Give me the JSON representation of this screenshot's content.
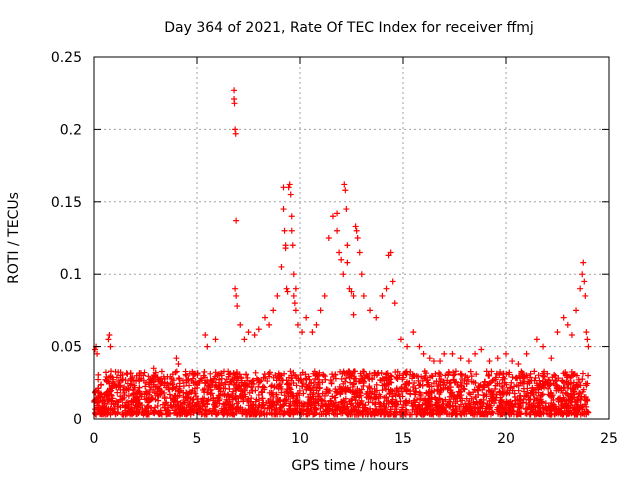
{
  "chart_data": {
    "type": "scatter",
    "title": "Day 364 of 2021, Rate Of TEC Index for receiver ffmj",
    "xlabel": "GPS time / hours",
    "ylabel": "ROTI / TECUs",
    "xlim": [
      0,
      25
    ],
    "ylim": [
      0,
      0.25
    ],
    "xticks": [
      0,
      5,
      10,
      15,
      20,
      25
    ],
    "xtick_labels": [
      "0",
      "5",
      "10",
      "15",
      "20",
      "25"
    ],
    "yticks": [
      0,
      0.05,
      0.1,
      0.15,
      0.2,
      0.25
    ],
    "ytick_labels": [
      "0",
      "0.05",
      "0.1",
      "0.15",
      "0.2",
      "0.25"
    ],
    "grid": true,
    "marker": "+",
    "color": "#ff0000",
    "series": [
      {
        "name": "ROTI",
        "baseline": {
          "x_range": [
            0,
            24
          ],
          "typical_max": 0.03,
          "count": 2600
        },
        "x": [
          0.05,
          0.1,
          0.15,
          0.7,
          0.75,
          0.8,
          2.9,
          3.0,
          4.0,
          4.1,
          5.4,
          5.5,
          5.9,
          6.8,
          6.8,
          6.82,
          6.85,
          6.88,
          6.9,
          6.85,
          6.9,
          6.95,
          7.1,
          7.3,
          7.5,
          7.8,
          8.0,
          8.3,
          8.5,
          8.7,
          8.9,
          9.1,
          9.2,
          9.2,
          9.25,
          9.3,
          9.3,
          9.35,
          9.4,
          9.45,
          9.5,
          9.55,
          9.6,
          9.6,
          9.65,
          9.7,
          9.7,
          9.75,
          9.8,
          9.8,
          9.9,
          10.1,
          10.3,
          10.6,
          10.8,
          11.0,
          11.2,
          11.4,
          11.6,
          11.8,
          11.8,
          11.9,
          12.0,
          12.1,
          12.15,
          12.2,
          12.25,
          12.3,
          12.3,
          12.4,
          12.5,
          12.6,
          12.6,
          12.7,
          12.75,
          12.8,
          12.9,
          13.0,
          13.1,
          13.4,
          13.7,
          14.0,
          14.2,
          14.3,
          14.4,
          14.5,
          14.6,
          14.9,
          15.2,
          15.5,
          15.8,
          16.0,
          16.3,
          16.5,
          16.8,
          17.0,
          17.4,
          17.8,
          18.2,
          18.5,
          18.8,
          19.2,
          19.6,
          20.0,
          20.3,
          20.6,
          21.0,
          21.5,
          21.8,
          22.2,
          22.5,
          22.8,
          23.0,
          23.2,
          23.4,
          23.6,
          23.7,
          23.75,
          23.8,
          23.85,
          23.9,
          23.95,
          24.0
        ],
        "y": [
          0.048,
          0.05,
          0.045,
          0.055,
          0.058,
          0.05,
          0.035,
          0.032,
          0.042,
          0.038,
          0.058,
          0.05,
          0.055,
          0.227,
          0.221,
          0.218,
          0.2,
          0.197,
          0.137,
          0.09,
          0.085,
          0.078,
          0.065,
          0.055,
          0.06,
          0.058,
          0.062,
          0.07,
          0.065,
          0.075,
          0.085,
          0.105,
          0.16,
          0.145,
          0.13,
          0.12,
          0.118,
          0.09,
          0.088,
          0.16,
          0.162,
          0.155,
          0.14,
          0.13,
          0.12,
          0.1,
          0.085,
          0.08,
          0.09,
          0.075,
          0.065,
          0.06,
          0.07,
          0.06,
          0.065,
          0.075,
          0.085,
          0.125,
          0.14,
          0.142,
          0.13,
          0.115,
          0.11,
          0.1,
          0.162,
          0.158,
          0.145,
          0.12,
          0.108,
          0.09,
          0.088,
          0.085,
          0.072,
          0.133,
          0.13,
          0.125,
          0.115,
          0.1,
          0.085,
          0.075,
          0.07,
          0.085,
          0.09,
          0.113,
          0.115,
          0.095,
          0.08,
          0.055,
          0.05,
          0.06,
          0.05,
          0.045,
          0.042,
          0.04,
          0.04,
          0.045,
          0.045,
          0.042,
          0.04,
          0.045,
          0.048,
          0.04,
          0.042,
          0.045,
          0.04,
          0.038,
          0.045,
          0.055,
          0.05,
          0.042,
          0.06,
          0.07,
          0.065,
          0.058,
          0.075,
          0.09,
          0.1,
          0.108,
          0.095,
          0.085,
          0.06,
          0.055,
          0.05
        ]
      }
    ]
  }
}
